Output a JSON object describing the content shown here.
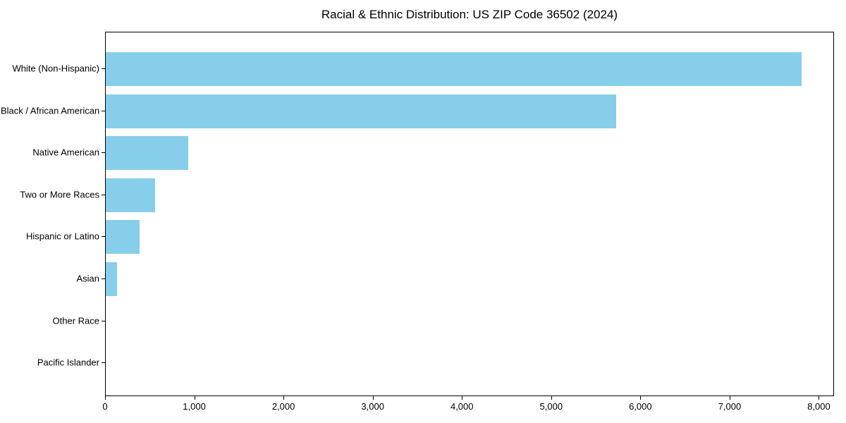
{
  "chart_data": {
    "type": "bar",
    "orientation": "horizontal",
    "title": "Racial & Ethnic Distribution: US ZIP Code 36502 (2024)",
    "categories": [
      "White (Non-Hispanic)",
      "Black / African American",
      "Native American",
      "Two or More Races",
      "Hispanic or Latino",
      "Asian",
      "Other Race",
      "Pacific Islander"
    ],
    "values": [
      7800,
      5720,
      925,
      550,
      380,
      130,
      0,
      0
    ],
    "xlabel": "",
    "ylabel": "",
    "xlim": [
      0,
      8170
    ],
    "xticks": [
      0,
      1000,
      2000,
      3000,
      4000,
      5000,
      6000,
      7000,
      8000
    ],
    "xtick_labels": [
      "0",
      "1,000",
      "2,000",
      "3,000",
      "4,000",
      "5,000",
      "6,000",
      "7,000",
      "8,000"
    ],
    "bar_color": "#87CEEB",
    "spine_color": "#000000",
    "grid": false,
    "legend_position": "none"
  }
}
